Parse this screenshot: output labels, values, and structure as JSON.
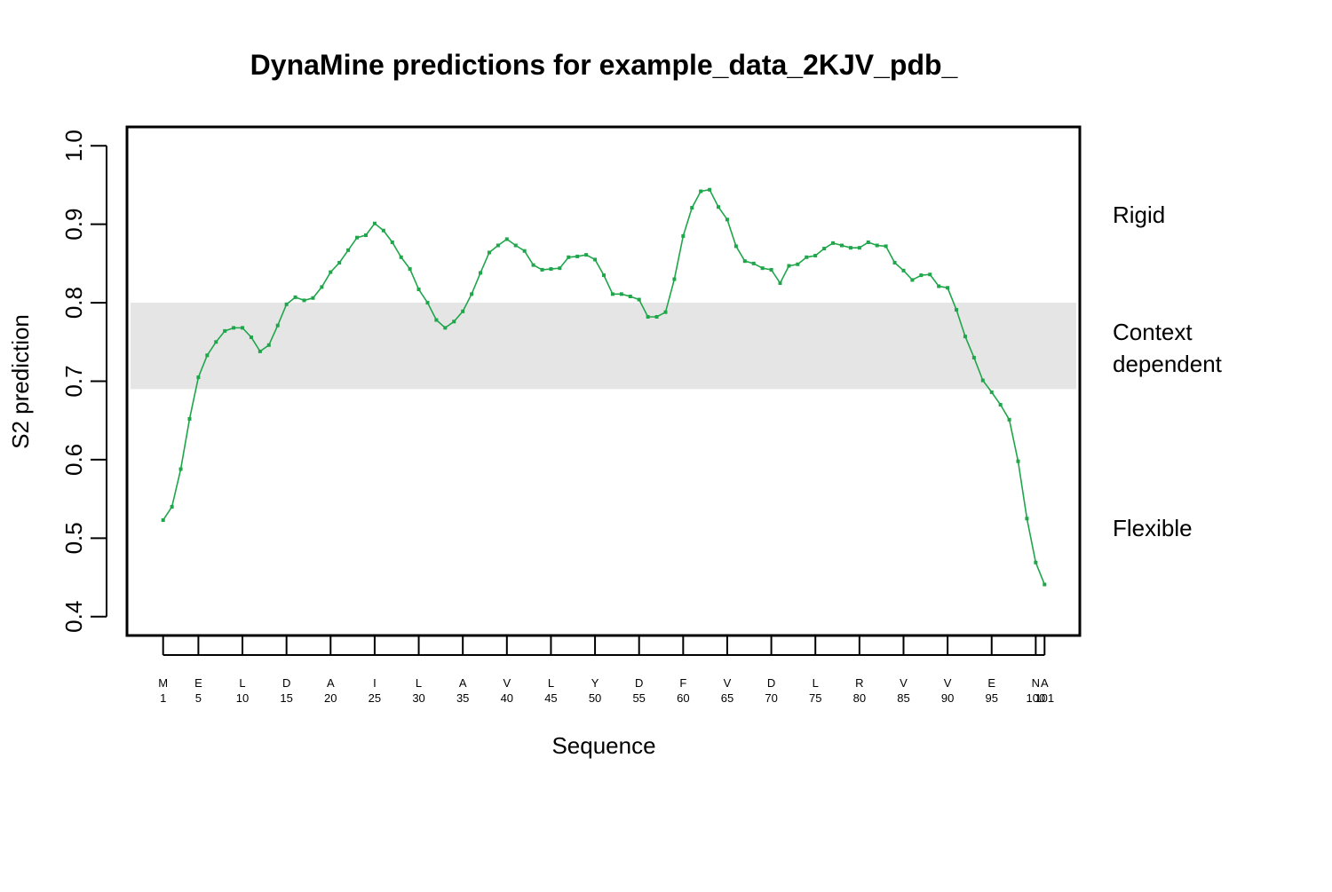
{
  "chart_data": {
    "type": "line",
    "title": "DynaMine predictions for example_data_2KJV_pdb_",
    "xlabel": "Sequence",
    "ylabel": "S2 prediction",
    "xlim": [
      -3.1,
      105
    ],
    "ylim": [
      0.376,
      1.024
    ],
    "yticks": [
      0.4,
      0.5,
      0.6,
      0.7,
      0.8,
      0.9,
      1.0
    ],
    "ytick_labels": [
      "0.4",
      "0.5",
      "0.6",
      "0.7",
      "0.8",
      "0.9",
      "1.0"
    ],
    "xticks": [
      {
        "pos": 1,
        "residue": "M",
        "number": "1"
      },
      {
        "pos": 5,
        "residue": "E",
        "number": "5"
      },
      {
        "pos": 10,
        "residue": "L",
        "number": "10"
      },
      {
        "pos": 15,
        "residue": "D",
        "number": "15"
      },
      {
        "pos": 20,
        "residue": "A",
        "number": "20"
      },
      {
        "pos": 25,
        "residue": "I",
        "number": "25"
      },
      {
        "pos": 30,
        "residue": "L",
        "number": "30"
      },
      {
        "pos": 35,
        "residue": "A",
        "number": "35"
      },
      {
        "pos": 40,
        "residue": "V",
        "number": "40"
      },
      {
        "pos": 45,
        "residue": "L",
        "number": "45"
      },
      {
        "pos": 50,
        "residue": "Y",
        "number": "50"
      },
      {
        "pos": 55,
        "residue": "D",
        "number": "55"
      },
      {
        "pos": 60,
        "residue": "F",
        "number": "60"
      },
      {
        "pos": 65,
        "residue": "V",
        "number": "65"
      },
      {
        "pos": 70,
        "residue": "D",
        "number": "70"
      },
      {
        "pos": 75,
        "residue": "L",
        "number": "75"
      },
      {
        "pos": 80,
        "residue": "R",
        "number": "80"
      },
      {
        "pos": 85,
        "residue": "V",
        "number": "85"
      },
      {
        "pos": 90,
        "residue": "V",
        "number": "90"
      },
      {
        "pos": 95,
        "residue": "E",
        "number": "95"
      },
      {
        "pos": 100,
        "residue": "N",
        "number": "100"
      },
      {
        "pos": 101,
        "residue": "A",
        "number": "101"
      }
    ],
    "context_band": [
      0.69,
      0.8
    ],
    "zone_labels": {
      "rigid": "Rigid",
      "context_line1": "Context",
      "context_line2": "dependent",
      "flexible": "Flexible"
    },
    "series": [
      {
        "color": "#1fa64a",
        "x": [
          1,
          2,
          3,
          4,
          5,
          6,
          7,
          8,
          9,
          10,
          11,
          12,
          13,
          14,
          15,
          16,
          17,
          18,
          19,
          20,
          21,
          22,
          23,
          24,
          25,
          26,
          27,
          28,
          29,
          30,
          31,
          32,
          33,
          34,
          35,
          36,
          37,
          38,
          39,
          40,
          41,
          42,
          43,
          44,
          45,
          46,
          47,
          48,
          49,
          50,
          51,
          52,
          53,
          54,
          55,
          56,
          57,
          58,
          59,
          60,
          61,
          62,
          63,
          64,
          65,
          66,
          67,
          68,
          69,
          70,
          71,
          72,
          73,
          74,
          75,
          76,
          77,
          78,
          79,
          80,
          81,
          82,
          83,
          84,
          85,
          86,
          87,
          88,
          89,
          90,
          91,
          92,
          93,
          94,
          95,
          96,
          97,
          98,
          99,
          100,
          101
        ],
        "values": [
          0.523,
          0.54,
          0.588,
          0.652,
          0.705,
          0.733,
          0.75,
          0.764,
          0.768,
          0.768,
          0.756,
          0.738,
          0.746,
          0.771,
          0.798,
          0.807,
          0.803,
          0.806,
          0.82,
          0.839,
          0.851,
          0.867,
          0.883,
          0.886,
          0.901,
          0.892,
          0.877,
          0.858,
          0.843,
          0.817,
          0.8,
          0.778,
          0.768,
          0.776,
          0.789,
          0.811,
          0.838,
          0.864,
          0.873,
          0.881,
          0.873,
          0.866,
          0.848,
          0.842,
          0.843,
          0.844,
          0.858,
          0.859,
          0.861,
          0.855,
          0.835,
          0.811,
          0.811,
          0.808,
          0.804,
          0.782,
          0.782,
          0.788,
          0.83,
          0.885,
          0.921,
          0.942,
          0.944,
          0.922,
          0.906,
          0.872,
          0.853,
          0.85,
          0.844,
          0.842,
          0.825,
          0.847,
          0.849,
          0.858,
          0.86,
          0.869,
          0.876,
          0.873,
          0.87,
          0.87,
          0.877,
          0.873,
          0.872,
          0.851,
          0.841,
          0.829,
          0.835,
          0.836,
          0.821,
          0.819,
          0.791,
          0.757,
          0.73,
          0.701,
          0.686,
          0.67,
          0.651,
          0.598,
          0.525,
          0.469,
          0.441
        ]
      }
    ]
  }
}
